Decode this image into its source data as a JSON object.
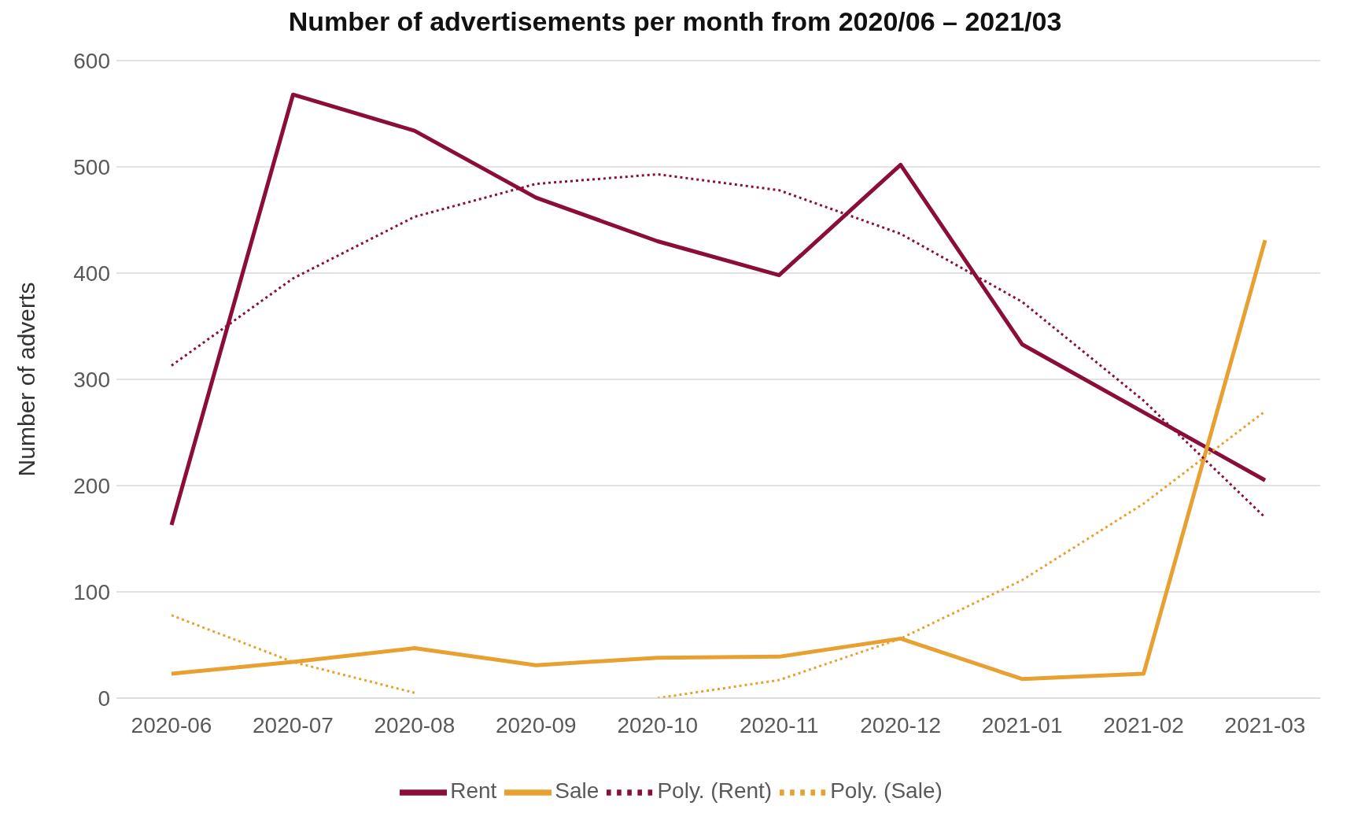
{
  "chart_data": {
    "type": "line",
    "title": "Number of advertisements per month from 2020/06 – 2021/03",
    "ylabel": "Number of adverts",
    "categories": [
      "2020-06",
      "2020-07",
      "2020-08",
      "2020-09",
      "2020-10",
      "2020-11",
      "2020-12",
      "2021-01",
      "2021-02",
      "2021-03"
    ],
    "series": [
      {
        "name": "Rent",
        "color": "#8b0e3a",
        "values": [
          163,
          568,
          534,
          471,
          430,
          398,
          502,
          333,
          269,
          205
        ]
      },
      {
        "name": "Sale",
        "color": "#e8a030",
        "values": [
          23,
          34,
          47,
          31,
          38,
          39,
          56,
          18,
          23,
          431
        ]
      },
      {
        "name": "Poly. (Rent)",
        "color": "#8b0e3a",
        "line_style": "dotted",
        "values": [
          313,
          395,
          453,
          484,
          493,
          478,
          437,
          373,
          280,
          170
        ]
      },
      {
        "name": "Poly. (Sale)",
        "color": "#e8a030",
        "line_style": "dotted",
        "values": [
          78,
          34,
          5,
          null,
          0,
          17,
          56,
          111,
          183,
          270
        ]
      }
    ],
    "ylim": [
      0,
      600
    ],
    "yticks": [
      0,
      100,
      200,
      300,
      400,
      500,
      600
    ],
    "grid": "y",
    "legend": "bottom",
    "marker": "none",
    "line_style": "solid"
  }
}
